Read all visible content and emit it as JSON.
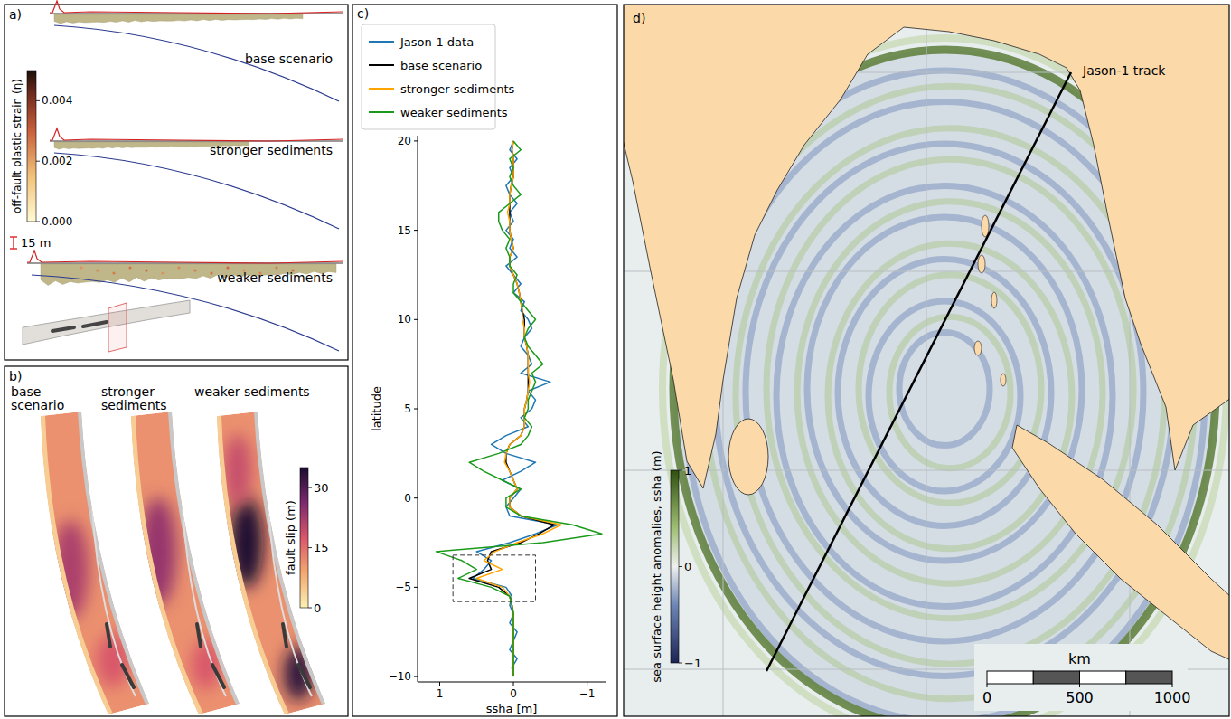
{
  "chart_data": {
    "type": "line",
    "panel_label": "c)",
    "x_label": "ssha [m]",
    "y_label": "latitude",
    "y": [
      -10,
      -9.5,
      -9,
      -8.5,
      -8,
      -7.5,
      -7,
      -6.5,
      -6,
      -5.5,
      -5,
      -4.5,
      -4,
      -3.5,
      -3,
      -2.5,
      -2,
      -1.5,
      -1,
      -0.5,
      0,
      0.5,
      1,
      1.5,
      2,
      2.5,
      3,
      3.5,
      4,
      4.5,
      5,
      5.5,
      6,
      6.5,
      7,
      7.5,
      8,
      8.5,
      9,
      9.5,
      10,
      10.5,
      11,
      11.5,
      12,
      12.5,
      13,
      13.5,
      14,
      14.5,
      15,
      15.5,
      16,
      16.5,
      17,
      17.5,
      18,
      18.5,
      19,
      19.5,
      20
    ],
    "series": [
      {
        "name": "Jason-1 data",
        "color": "#1f77b4",
        "values": [
          0,
          0.02,
          -0.05,
          0.05,
          0,
          -0.05,
          0.05,
          0,
          0.05,
          0.02,
          0.1,
          0.55,
          0.4,
          0.3,
          0.5,
          0.05,
          -0.3,
          -0.6,
          0.05,
          0.1,
          0,
          -0.1,
          0.15,
          -0.1,
          -0.3,
          0.1,
          0.3,
          0.1,
          -0.2,
          -0.1,
          -0.25,
          -0.3,
          -0.2,
          -0.5,
          -0.1,
          -0.25,
          -0.2,
          -0.1,
          -0.15,
          -0.25,
          -0.2,
          -0.1,
          -0.15,
          0,
          -0.1,
          0,
          0.1,
          -0.05,
          0.05,
          0,
          0.1,
          0,
          0.05,
          -0.05,
          0.05,
          0.1,
          0,
          0.05,
          -0.05,
          0.05,
          0
        ]
      },
      {
        "name": "base scenario",
        "color": "#000000",
        "values": [
          0,
          0,
          0,
          0,
          0,
          0,
          0,
          0,
          0.02,
          0.05,
          0.2,
          0.6,
          0.3,
          0.35,
          0.3,
          -0.1,
          -0.35,
          -0.55,
          -0.1,
          0.05,
          0.05,
          -0.05,
          0,
          0.05,
          0.1,
          0.1,
          0.05,
          -0.1,
          -0.15,
          -0.15,
          -0.15,
          -0.18,
          -0.2,
          -0.2,
          -0.2,
          -0.2,
          -0.2,
          -0.18,
          -0.15,
          -0.15,
          -0.15,
          -0.12,
          -0.1,
          -0.08,
          -0.05,
          0,
          0.05,
          0.05,
          0,
          0.03,
          0.05,
          0.05,
          0.05,
          0.05,
          0.05,
          0.03,
          0,
          0,
          0,
          0.02,
          0
        ]
      },
      {
        "name": "stronger sediments",
        "color": "#ffa500",
        "values": [
          0,
          0,
          0,
          0,
          0,
          0,
          0,
          0,
          0.02,
          0.05,
          0.15,
          0.5,
          0.15,
          0.4,
          0.25,
          -0.05,
          -0.4,
          -0.65,
          -0.1,
          0.05,
          0.05,
          -0.05,
          0,
          0.05,
          0.12,
          0.1,
          0.05,
          -0.1,
          -0.15,
          -0.15,
          -0.15,
          -0.18,
          -0.2,
          -0.22,
          -0.2,
          -0.2,
          -0.2,
          -0.18,
          -0.15,
          -0.15,
          -0.12,
          -0.12,
          -0.1,
          -0.08,
          -0.05,
          0,
          0.05,
          0.05,
          0,
          0.03,
          0.05,
          0.05,
          0.08,
          0.05,
          0.05,
          0.03,
          0,
          0,
          0,
          0.02,
          0
        ]
      },
      {
        "name": "weaker sediments",
        "color": "#1a9a1a",
        "values": [
          0,
          0,
          0,
          0,
          0,
          0,
          0,
          0,
          0.02,
          0.05,
          0.3,
          0.75,
          0.5,
          0.7,
          1.05,
          -0.4,
          -1.2,
          -0.8,
          -0.1,
          0.1,
          0.1,
          -0.1,
          0.15,
          0.4,
          0.6,
          0.2,
          -0.1,
          -0.2,
          -0.25,
          -0.15,
          -0.2,
          -0.2,
          -0.25,
          -0.3,
          -0.25,
          -0.4,
          -0.3,
          -0.2,
          -0.15,
          -0.2,
          -0.3,
          -0.2,
          -0.1,
          0,
          0,
          -0.05,
          0.05,
          0.05,
          0.1,
          0.05,
          0.15,
          0.2,
          0.2,
          0.05,
          -0.1,
          0,
          0.05,
          0,
          0.05,
          -0.1,
          0
        ]
      }
    ],
    "xlim": [
      1.3,
      -1.25
    ],
    "xticks": [
      1,
      0,
      {
        "value": -1,
        "label": "−1"
      }
    ],
    "ylim": [
      -10.3,
      20.3
    ],
    "yticks": [
      {
        "value": -10,
        "label": "−10"
      },
      {
        "value": -5,
        "label": "−5"
      },
      0,
      5,
      10,
      15,
      20
    ],
    "legend": "upper left",
    "highlight_box": {
      "x": [
        0.82,
        -0.3
      ],
      "y": [
        -5.8,
        -3.2
      ]
    }
  },
  "panel_a": {
    "label": "a)",
    "scenarios": [
      "base scenario",
      "stronger sediments",
      "weaker sediments"
    ],
    "colorbar": {
      "title": "off-fault plastic strain (η)",
      "range": [
        0,
        0.005
      ],
      "ticks": [
        {
          "value": 0,
          "label": "0.000"
        },
        {
          "value": 0.002,
          "label": "0.002"
        },
        {
          "value": 0.004,
          "label": "0.004"
        }
      ]
    },
    "scale_bar": {
      "value": 15,
      "label": "15 m"
    }
  },
  "panel_b": {
    "label": "b)",
    "scenarios": [
      "base scenario",
      "stronger sediments",
      "weaker sediments"
    ],
    "colorbar": {
      "title": "fault slip (m)",
      "range": [
        0,
        35
      ],
      "ticks": [
        0,
        15,
        30
      ]
    }
  },
  "panel_d": {
    "label": "d)",
    "track_label": "Jason-1 track",
    "colorbar": {
      "title": "sea surface height  anomalies, ssha (m)",
      "range": [
        -1,
        1
      ],
      "ticks": [
        {
          "value": -1,
          "label": "−1"
        },
        0,
        1
      ]
    },
    "scale_bar": {
      "title": "km",
      "range": [
        0,
        1000
      ],
      "ticks": [
        0,
        500,
        1000
      ]
    }
  }
}
